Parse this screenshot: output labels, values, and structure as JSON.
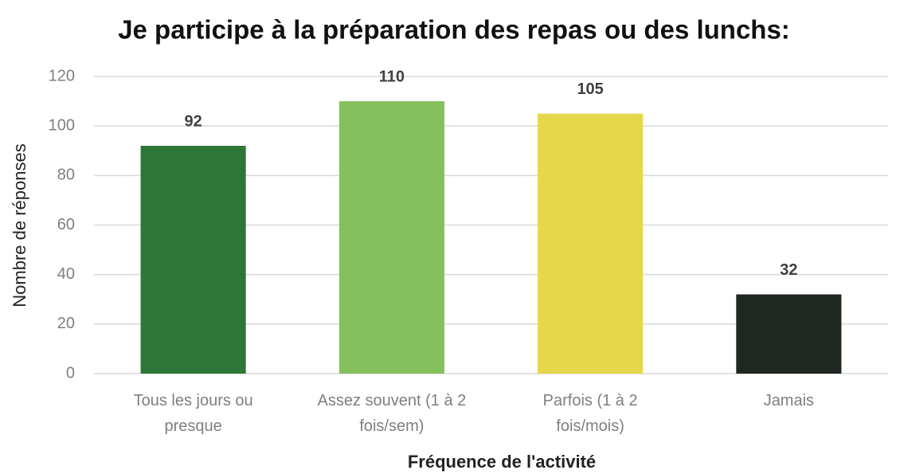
{
  "chart_data": {
    "type": "bar",
    "title": "Je participe à la préparation des repas ou des lunchs:",
    "x_label": "Fréquence de l'activité",
    "y_label": "Nombre de réponses",
    "categories": [
      "Tous les jours ou presque",
      "Assez souvent (1 à 2 fois/sem)",
      "Parfois (1 à 2 fois/mois)",
      "Jamais"
    ],
    "values": [
      92,
      110,
      105,
      32
    ],
    "colors": [
      "#2e7638",
      "#84c15c",
      "#e5d84a",
      "#212721"
    ],
    "ylim": [
      0,
      120
    ],
    "yticks": [
      0,
      20,
      40,
      60,
      80,
      100,
      120
    ],
    "grid": true
  }
}
